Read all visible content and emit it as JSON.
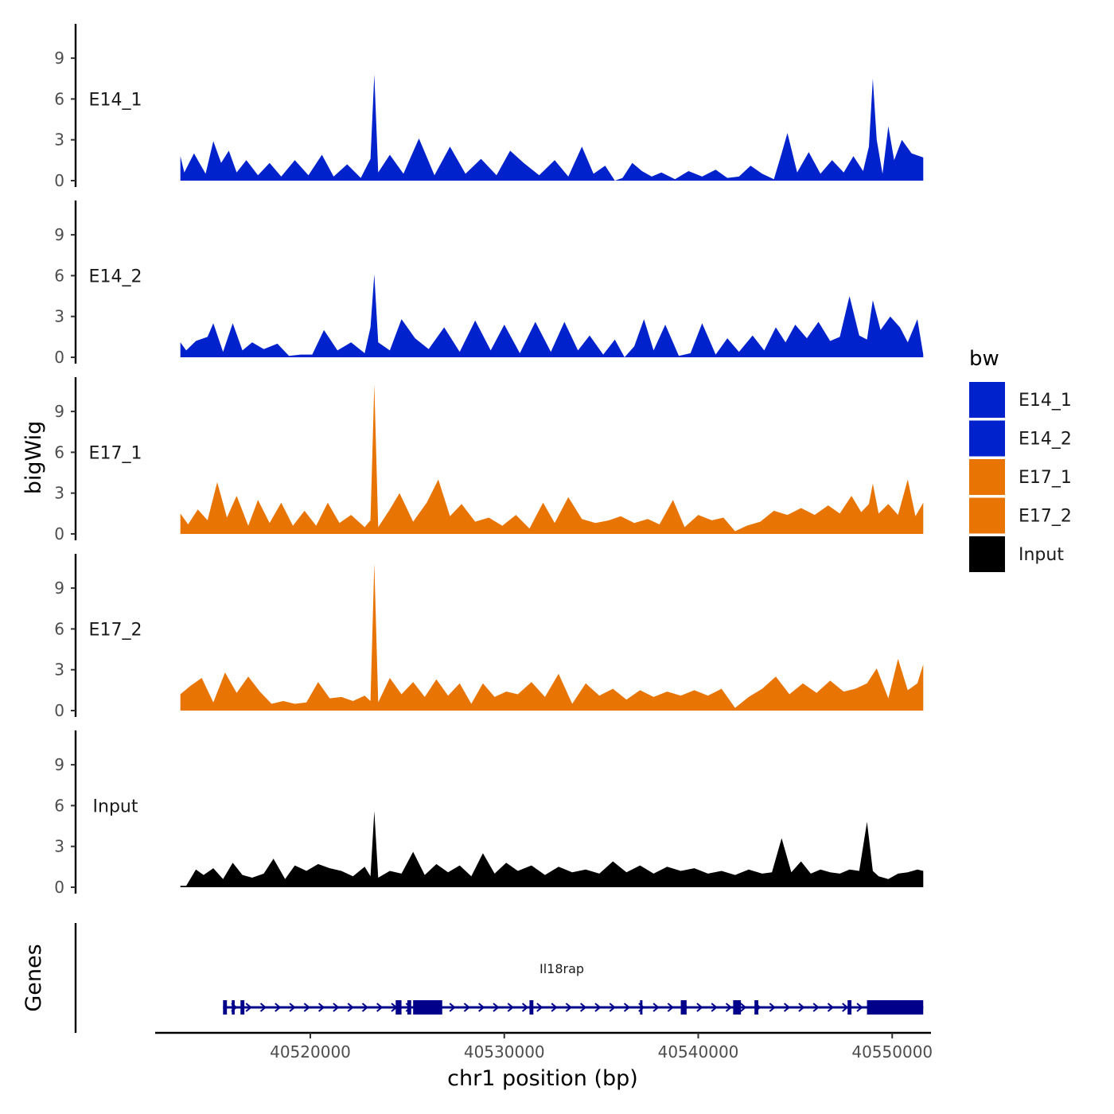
{
  "chart_data": {
    "type": "area",
    "xlabel": "chr1 position (bp)",
    "ylabel": "bigWig",
    "genes_panel_label": "Genes",
    "xlim": [
      40512000,
      40552000
    ],
    "ylim": [
      0,
      11.5
    ],
    "y_ticks": [
      0,
      3,
      6,
      9
    ],
    "y_tick_labels": [
      "0",
      "3",
      "6",
      "9"
    ],
    "x_ticks": [
      40520000,
      40530000,
      40540000,
      40550000
    ],
    "x_tick_labels": [
      "40520000",
      "40530000",
      "40540000",
      "40550000"
    ],
    "legend": {
      "title": "bw",
      "entries": [
        {
          "label": "E14_1",
          "color": "#0022CC"
        },
        {
          "label": "E14_2",
          "color": "#0022CC"
        },
        {
          "label": "E17_1",
          "color": "#E87404"
        },
        {
          "label": "E17_2",
          "color": "#E87404"
        },
        {
          "label": "Input",
          "color": "#000000"
        }
      ]
    },
    "series": [
      {
        "name": "E14_1",
        "color": "#0022CC",
        "x": [
          40513300,
          40513500,
          40514000,
          40514600,
          40515000,
          40515400,
          40515800,
          40516200,
          40516700,
          40517300,
          40517900,
          40518500,
          40519200,
          40519900,
          40520600,
          40521200,
          40521900,
          40522600,
          40523100,
          40523300,
          40523500,
          40524100,
          40524800,
          40525600,
          40526400,
          40527200,
          40528000,
          40528800,
          40529600,
          40530300,
          40531000,
          40531800,
          40532600,
          40533300,
          40534000,
          40534600,
          40535200,
          40535700,
          40536100,
          40536600,
          40537100,
          40537600,
          40538100,
          40538800,
          40539500,
          40540200,
          40540900,
          40541500,
          40542100,
          40542700,
          40543300,
          40543900,
          40544300,
          40544600,
          40545100,
          40545700,
          40546300,
          40546900,
          40547500,
          40548000,
          40548500,
          40548800,
          40549000,
          40549200,
          40549500,
          40549800,
          40550100,
          40550500,
          40551000,
          40551600
        ],
        "y": [
          1.8,
          0.6,
          2.0,
          0.5,
          2.9,
          1.3,
          2.2,
          0.6,
          1.5,
          0.4,
          1.3,
          0.3,
          1.5,
          0.4,
          1.9,
          0.3,
          1.2,
          0.2,
          1.6,
          7.8,
          0.6,
          1.9,
          0.5,
          3.1,
          0.4,
          2.5,
          0.5,
          1.6,
          0.4,
          2.2,
          1.3,
          0.4,
          1.5,
          0.3,
          2.5,
          0.5,
          1.1,
          0.0,
          0.2,
          1.3,
          0.7,
          0.3,
          0.6,
          0.1,
          0.7,
          0.3,
          0.8,
          0.2,
          0.3,
          1.1,
          0.5,
          0.1,
          2.0,
          3.5,
          0.6,
          2.1,
          0.5,
          1.5,
          0.6,
          1.8,
          0.7,
          2.5,
          7.5,
          3.0,
          0.5,
          4.0,
          1.5,
          3.0,
          2.0,
          1.7
        ]
      },
      {
        "name": "E14_2",
        "color": "#0022CC",
        "x": [
          40513300,
          40513600,
          40514100,
          40514700,
          40515000,
          40515500,
          40516000,
          40516500,
          40517000,
          40517600,
          40518300,
          40518900,
          40519500,
          40520100,
          40520700,
          40521400,
          40522100,
          40522800,
          40523100,
          40523300,
          40523500,
          40524100,
          40524700,
          40525400,
          40526100,
          40526900,
          40527700,
          40528500,
          40529300,
          40530000,
          40530800,
          40531600,
          40532400,
          40533100,
          40533800,
          40534400,
          40535100,
          40535700,
          40536200,
          40536700,
          40537200,
          40537700,
          40538300,
          40539000,
          40539600,
          40540200,
          40540900,
          40541500,
          40542100,
          40542800,
          40543400,
          40544000,
          40544500,
          40545000,
          40545600,
          40546200,
          40546800,
          40547300,
          40547800,
          40548300,
          40548700,
          40549000,
          40549400,
          40549900,
          40550400,
          40550800,
          40551300,
          40551600
        ],
        "y": [
          1.1,
          0.5,
          1.2,
          1.5,
          2.5,
          0.4,
          2.5,
          0.5,
          1.1,
          0.6,
          1.0,
          0.1,
          0.2,
          0.2,
          2.0,
          0.5,
          1.1,
          0.3,
          2.2,
          6.1,
          1.1,
          0.5,
          2.8,
          1.4,
          0.6,
          2.2,
          0.4,
          2.7,
          0.5,
          2.4,
          0.3,
          2.6,
          0.4,
          2.6,
          0.5,
          1.6,
          0.2,
          1.3,
          0.0,
          0.8,
          2.8,
          0.5,
          2.4,
          0.1,
          0.3,
          2.5,
          0.2,
          1.4,
          0.4,
          1.6,
          0.5,
          2.2,
          1.1,
          2.4,
          1.4,
          2.6,
          1.2,
          1.5,
          4.5,
          1.6,
          1.3,
          4.2,
          2.0,
          3.0,
          2.2,
          1.1,
          2.8,
          0.2
        ]
      },
      {
        "name": "E17_1",
        "color": "#E87404",
        "x": [
          40513300,
          40513700,
          40514200,
          40514700,
          40515200,
          40515700,
          40516200,
          40516800,
          40517300,
          40517900,
          40518500,
          40519100,
          40519700,
          40520300,
          40520900,
          40521500,
          40522100,
          40522800,
          40523100,
          40523300,
          40523500,
          40524100,
          40524600,
          40525300,
          40526000,
          40526600,
          40527200,
          40527800,
          40528500,
          40529200,
          40529900,
          40530600,
          40531300,
          40532000,
          40532600,
          40533300,
          40534000,
          40534700,
          40535400,
          40536000,
          40536700,
          40537400,
          40538000,
          40538700,
          40539300,
          40540000,
          40540700,
          40541300,
          40541900,
          40542500,
          40543200,
          40543900,
          40544600,
          40545300,
          40546000,
          40546700,
          40547300,
          40547900,
          40548400,
          40548800,
          40549000,
          40549300,
          40549800,
          40550300,
          40550800,
          40551200,
          40551600
        ],
        "y": [
          1.5,
          0.7,
          1.8,
          1.0,
          3.8,
          1.2,
          2.8,
          0.6,
          2.5,
          0.8,
          2.3,
          0.6,
          1.7,
          0.6,
          2.3,
          0.8,
          1.4,
          0.5,
          1.0,
          11.0,
          0.5,
          1.8,
          3.0,
          0.9,
          2.3,
          4.0,
          1.3,
          2.2,
          0.9,
          1.2,
          0.6,
          1.4,
          0.4,
          2.3,
          0.8,
          2.7,
          1.1,
          0.8,
          1.0,
          1.3,
          0.8,
          1.1,
          0.7,
          2.5,
          0.5,
          1.4,
          1.0,
          1.2,
          0.2,
          0.6,
          0.9,
          1.7,
          1.4,
          1.9,
          1.4,
          2.1,
          1.5,
          2.8,
          1.6,
          2.2,
          3.7,
          1.5,
          2.2,
          1.4,
          4.0,
          1.3,
          2.3
        ]
      },
      {
        "name": "E17_2",
        "color": "#E87404",
        "x": [
          40513300,
          40513800,
          40514400,
          40515000,
          40515600,
          40516200,
          40516800,
          40517400,
          40518000,
          40518600,
          40519200,
          40519800,
          40520400,
          40521000,
          40521600,
          40522200,
          40522800,
          40523100,
          40523300,
          40523500,
          40524100,
          40524700,
          40525300,
          40525900,
          40526500,
          40527100,
          40527700,
          40528300,
          40528900,
          40529500,
          40530100,
          40530700,
          40531400,
          40532100,
          40532800,
          40533500,
          40534200,
          40534900,
          40535600,
          40536300,
          40537000,
          40537700,
          40538400,
          40539100,
          40539800,
          40540500,
          40541200,
          40541900,
          40542600,
          40543300,
          40544000,
          40544700,
          40545400,
          40546100,
          40546800,
          40547500,
          40548100,
          40548700,
          40549200,
          40549800,
          40550300,
          40550800,
          40551300,
          40551600
        ],
        "y": [
          1.2,
          1.8,
          2.4,
          0.6,
          2.8,
          1.3,
          2.5,
          1.4,
          0.5,
          0.7,
          0.5,
          0.6,
          2.1,
          0.9,
          1.0,
          0.7,
          1.1,
          0.7,
          10.8,
          0.6,
          2.4,
          1.2,
          2.1,
          1.0,
          2.3,
          1.1,
          2.0,
          0.5,
          2.0,
          1.0,
          1.4,
          1.2,
          2.1,
          1.0,
          2.7,
          0.5,
          2.0,
          1.1,
          1.6,
          0.8,
          1.5,
          1.0,
          1.4,
          1.1,
          1.5,
          1.1,
          1.6,
          0.2,
          1.0,
          1.6,
          2.5,
          1.2,
          2.0,
          1.3,
          2.2,
          1.4,
          1.6,
          2.0,
          3.1,
          0.9,
          3.8,
          1.5,
          2.0,
          3.4
        ]
      },
      {
        "name": "Input",
        "color": "#000000",
        "x": [
          40513300,
          40513600,
          40514100,
          40514500,
          40515000,
          40515500,
          40516000,
          40516500,
          40517000,
          40517600,
          40518100,
          40518700,
          40519200,
          40519800,
          40520400,
          40521000,
          40521600,
          40522200,
          40522800,
          40523100,
          40523300,
          40523500,
          40524100,
          40524700,
          40525300,
          40525900,
          40526500,
          40527100,
          40527700,
          40528300,
          40528900,
          40529500,
          40530100,
          40530700,
          40531400,
          40532100,
          40532800,
          40533500,
          40534200,
          40534900,
          40535600,
          40536300,
          40537000,
          40537700,
          40538400,
          40539100,
          40539800,
          40540500,
          40541200,
          40541900,
          40542600,
          40543300,
          40543800,
          40544300,
          40544800,
          40545300,
          40545800,
          40546300,
          40546800,
          40547300,
          40547800,
          40548300,
          40548700,
          40549000,
          40549300,
          40549800,
          40550300,
          40550800,
          40551300,
          40551600
        ],
        "y": [
          0.1,
          0.1,
          1.3,
          0.9,
          1.4,
          0.6,
          1.8,
          0.9,
          0.7,
          1.0,
          2.1,
          0.6,
          1.6,
          1.2,
          1.7,
          1.4,
          1.2,
          0.8,
          1.5,
          0.8,
          5.6,
          0.7,
          1.2,
          1.0,
          2.6,
          0.9,
          1.7,
          1.1,
          1.6,
          0.8,
          2.5,
          1.0,
          1.8,
          1.2,
          1.6,
          0.9,
          1.5,
          1.1,
          1.3,
          1.0,
          1.9,
          1.1,
          1.6,
          1.0,
          1.5,
          1.2,
          1.4,
          1.0,
          1.2,
          0.9,
          1.3,
          1.0,
          1.1,
          3.6,
          1.1,
          1.9,
          1.0,
          1.3,
          1.1,
          1.0,
          1.3,
          1.2,
          4.8,
          1.2,
          0.8,
          0.6,
          1.0,
          1.1,
          1.3,
          1.2
        ]
      }
    ],
    "genes": [
      {
        "name": "Il18rap",
        "strand": "+",
        "color": "#00008B",
        "start": 40515500,
        "end": 40551600,
        "exons": [
          [
            40515500,
            40515700
          ],
          [
            40515950,
            40516100
          ],
          [
            40516400,
            40516600
          ],
          [
            40524400,
            40524700
          ],
          [
            40525000,
            40525200
          ],
          [
            40525300,
            40526800
          ],
          [
            40531300,
            40531500
          ],
          [
            40537000,
            40537100
          ],
          [
            40539100,
            40539400
          ],
          [
            40541800,
            40542200
          ],
          [
            40542900,
            40543100
          ],
          [
            40547700,
            40547900
          ],
          [
            40548700,
            40551600
          ]
        ]
      }
    ]
  }
}
